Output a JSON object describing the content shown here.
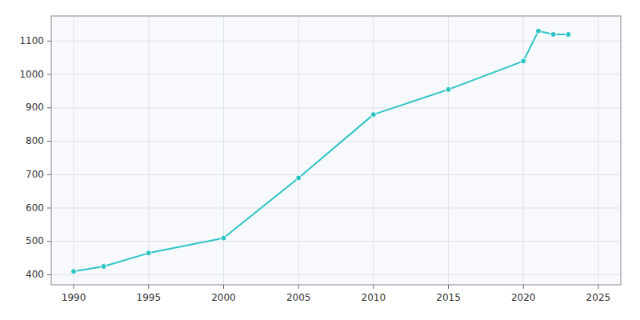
{
  "chart_data": {
    "type": "line",
    "x": [
      1990,
      1992,
      1995,
      2000,
      2005,
      2010,
      2015,
      2020,
      2021,
      2022,
      2023
    ],
    "values": [
      410,
      425,
      465,
      510,
      690,
      880,
      955,
      1040,
      1130,
      1120,
      1120
    ],
    "color": "#2ec4c4",
    "marker": "circle",
    "xlim": [
      1988.5,
      2026.5
    ],
    "ylim": [
      370,
      1175
    ],
    "xticks": [
      1990,
      1995,
      2000,
      2005,
      2010,
      2015,
      2020,
      2025
    ],
    "yticks": [
      400,
      500,
      600,
      700,
      800,
      900,
      1000,
      1100
    ],
    "grid": true
  }
}
